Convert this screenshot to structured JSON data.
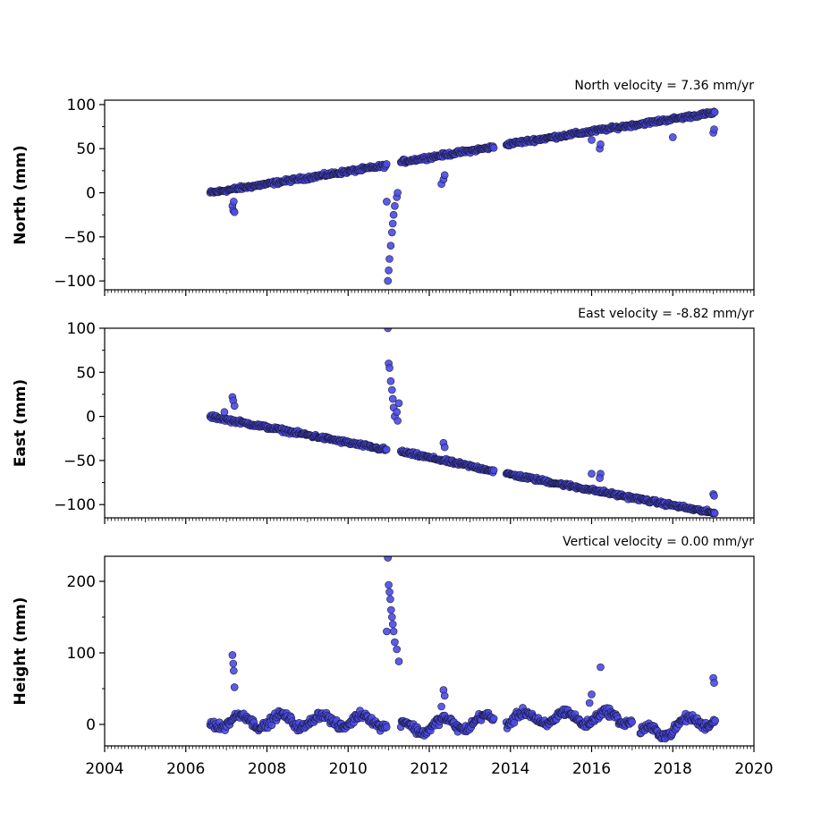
{
  "chart_data": [
    {
      "type": "scatter",
      "title": "North velocity = 7.36 mm/yr",
      "ylabel": "North (mm)",
      "xlim": [
        2004,
        2020
      ],
      "ylim": [
        -110,
        105
      ],
      "yticks": [
        -100,
        -50,
        0,
        50,
        100
      ],
      "ytick_labels": [
        "−100",
        "−50",
        "0",
        "50",
        "100"
      ],
      "marker_color": "#4a4ae6",
      "segments": [
        {
          "x0": 2006.6,
          "x1": 2010.95,
          "y0": 0,
          "y1": 31
        },
        {
          "x0": 2011.3,
          "x1": 2013.6,
          "y0": 35,
          "y1": 52
        },
        {
          "x0": 2013.9,
          "x1": 2019.05,
          "y0": 55,
          "y1": 91
        }
      ],
      "outliers": [
        [
          2007.15,
          -15
        ],
        [
          2007.17,
          -20
        ],
        [
          2007.2,
          -22
        ],
        [
          2007.18,
          -10
        ],
        [
          2010.95,
          -10
        ],
        [
          2010.98,
          -100
        ],
        [
          2011.0,
          -88
        ],
        [
          2011.02,
          -75
        ],
        [
          2011.05,
          -60
        ],
        [
          2011.08,
          -45
        ],
        [
          2011.1,
          -35
        ],
        [
          2011.12,
          -25
        ],
        [
          2011.15,
          -15
        ],
        [
          2011.2,
          -5
        ],
        [
          2011.22,
          0
        ],
        [
          2012.3,
          10
        ],
        [
          2012.35,
          15
        ],
        [
          2012.38,
          20
        ],
        [
          2016.2,
          50
        ],
        [
          2016.22,
          55
        ],
        [
          2016.0,
          60
        ],
        [
          2018.0,
          63
        ],
        [
          2019.0,
          68
        ],
        [
          2019.02,
          72
        ]
      ]
    },
    {
      "type": "scatter",
      "title": "East velocity = -8.82 mm/yr",
      "ylabel": "East (mm)",
      "xlim": [
        2004,
        2020
      ],
      "ylim": [
        -115,
        100
      ],
      "yticks": [
        -100,
        -50,
        0,
        50,
        100
      ],
      "ytick_labels": [
        "−100",
        "−50",
        "0",
        "50",
        "100"
      ],
      "marker_color": "#4a4ae6",
      "segments": [
        {
          "x0": 2006.6,
          "x1": 2010.95,
          "y0": 0,
          "y1": -38
        },
        {
          "x0": 2011.3,
          "x1": 2013.6,
          "y0": -40,
          "y1": -62
        },
        {
          "x0": 2013.9,
          "x1": 2019.05,
          "y0": -65,
          "y1": -110
        }
      ],
      "outliers": [
        [
          2007.15,
          22
        ],
        [
          2007.17,
          18
        ],
        [
          2007.2,
          12
        ],
        [
          2006.95,
          5
        ],
        [
          2010.98,
          100
        ],
        [
          2011.0,
          60
        ],
        [
          2011.02,
          55
        ],
        [
          2011.05,
          40
        ],
        [
          2011.08,
          30
        ],
        [
          2011.1,
          20
        ],
        [
          2011.12,
          10
        ],
        [
          2011.15,
          0
        ],
        [
          2011.2,
          5
        ],
        [
          2011.25,
          15
        ],
        [
          2011.22,
          -5
        ],
        [
          2012.35,
          -30
        ],
        [
          2012.38,
          -35
        ],
        [
          2016.0,
          -65
        ],
        [
          2016.22,
          -65
        ],
        [
          2016.2,
          -70
        ],
        [
          2019.0,
          -88
        ],
        [
          2019.02,
          -90
        ]
      ]
    },
    {
      "type": "scatter",
      "title": "Vertical velocity = 0.00 mm/yr",
      "ylabel": "Height (mm)",
      "xlim": [
        2004,
        2020
      ],
      "ylim": [
        -30,
        235
      ],
      "yticks": [
        0,
        100,
        200
      ],
      "ytick_labels": [
        "0",
        "100",
        "200"
      ],
      "xticks": [
        2004,
        2006,
        2008,
        2010,
        2012,
        2014,
        2016,
        2018,
        2020
      ],
      "xtick_labels": [
        "2004",
        "2006",
        "2008",
        "2010",
        "2012",
        "2014",
        "2016",
        "2018",
        "2020"
      ],
      "marker_color": "#4a4ae6",
      "segments": [
        {
          "x0": 2006.6,
          "x1": 2010.95,
          "y0": 5,
          "y1": 5,
          "seasonal": 10
        },
        {
          "x0": 2011.3,
          "x1": 2013.6,
          "y0": -5,
          "y1": 5,
          "seasonal": 10
        },
        {
          "x0": 2013.9,
          "x1": 2017.0,
          "y0": 8,
          "y1": 10,
          "seasonal": 10
        },
        {
          "x0": 2017.2,
          "x1": 2019.05,
          "y0": -15,
          "y1": 10,
          "seasonal": 10
        }
      ],
      "outliers": [
        [
          2007.15,
          97
        ],
        [
          2007.17,
          85
        ],
        [
          2007.18,
          75
        ],
        [
          2007.2,
          52
        ],
        [
          2010.98,
          233
        ],
        [
          2011.0,
          195
        ],
        [
          2011.02,
          185
        ],
        [
          2011.04,
          175
        ],
        [
          2011.06,
          160
        ],
        [
          2011.08,
          150
        ],
        [
          2011.1,
          140
        ],
        [
          2011.12,
          130
        ],
        [
          2011.15,
          115
        ],
        [
          2011.2,
          105
        ],
        [
          2011.25,
          88
        ],
        [
          2010.95,
          130
        ],
        [
          2012.35,
          48
        ],
        [
          2012.38,
          40
        ],
        [
          2012.3,
          25
        ],
        [
          2016.22,
          80
        ],
        [
          2016.0,
          42
        ],
        [
          2015.95,
          30
        ],
        [
          2019.0,
          65
        ],
        [
          2019.02,
          58
        ]
      ]
    }
  ]
}
